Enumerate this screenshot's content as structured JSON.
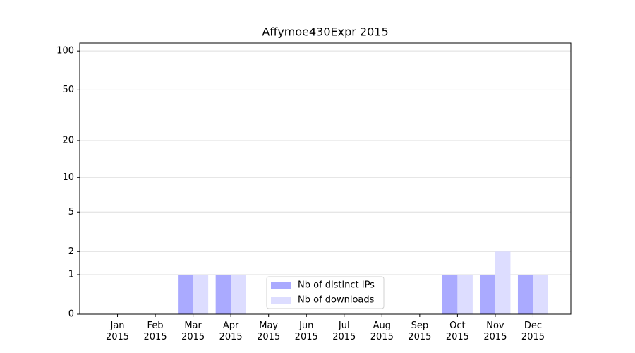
{
  "chart_data": {
    "type": "bar",
    "title": "Affymoe430Expr 2015",
    "categories": [
      [
        "Jan",
        "2015"
      ],
      [
        "Feb",
        "2015"
      ],
      [
        "Mar",
        "2015"
      ],
      [
        "Apr",
        "2015"
      ],
      [
        "May",
        "2015"
      ],
      [
        "Jun",
        "2015"
      ],
      [
        "Jul",
        "2015"
      ],
      [
        "Aug",
        "2015"
      ],
      [
        "Sep",
        "2015"
      ],
      [
        "Oct",
        "2015"
      ],
      [
        "Nov",
        "2015"
      ],
      [
        "Dec",
        "2015"
      ]
    ],
    "series": [
      {
        "name": "Nb of distinct IPs",
        "color": "#aaaaff",
        "values": [
          0,
          0,
          1,
          1,
          0,
          0,
          0,
          0,
          0,
          1,
          1,
          1
        ]
      },
      {
        "name": "Nb of downloads",
        "color": "#ddddff",
        "values": [
          0,
          0,
          1,
          1,
          0,
          0,
          0,
          0,
          0,
          1,
          2,
          1
        ]
      }
    ],
    "yscale": "log1p",
    "ylim": [
      0,
      115
    ],
    "yticks": [
      0,
      1,
      2,
      5,
      10,
      20,
      50,
      100
    ],
    "grid": true,
    "legend": "lower center"
  }
}
